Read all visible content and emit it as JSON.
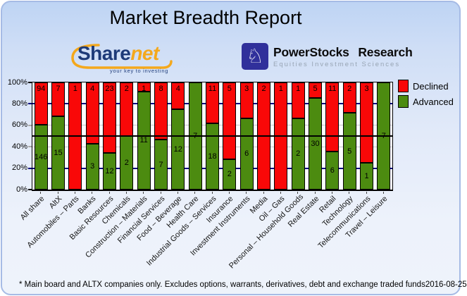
{
  "header": {
    "title": "Market Breadth Report"
  },
  "logos": {
    "sharenet": {
      "part1": "Share",
      "part2": "net",
      "tagline": "your key to investing",
      "navy": "#1d3a78",
      "orange": "#f4a81c"
    },
    "powerstocks": {
      "name": "PowerStocks Research",
      "tagline": "Equities Investment Sciences",
      "icon": "knight-chess-icon",
      "glyph": "♘",
      "box_color": "#30309b"
    }
  },
  "chart_data": {
    "type": "bar",
    "stacked": true,
    "normalized_to_100_percent": true,
    "title": "Market Breadth Report",
    "xlabel": "",
    "ylabel": "",
    "ylim": [
      0,
      100
    ],
    "yticks": [
      "100%",
      "80%",
      "60%",
      "40%",
      "20%",
      "0%"
    ],
    "legend_position": "upper right outside plot",
    "categories": [
      "All share",
      "AltX",
      "Automobiles – Parts",
      "Banks",
      "Basic Resources",
      "Chemicals",
      "Construction – Materials",
      "Financial Services",
      "Food – Beverage",
      "Health Care",
      "Industrial Goods – Services",
      "Insurance",
      "Investment Instruments",
      "Media",
      "Oil – Gas",
      "Personal – Household Goods",
      "Real Estate",
      "Retail",
      "Technology",
      "Telecommunications",
      "Travel – Leisure"
    ],
    "series": [
      {
        "name": "Declined",
        "color": "#f90808",
        "values": [
          94,
          7,
          1,
          4,
          23,
          2,
          1,
          8,
          4,
          0,
          11,
          5,
          3,
          2,
          1,
          1,
          5,
          11,
          2,
          3,
          0
        ]
      },
      {
        "name": "Advanced",
        "color": "#4c8b10",
        "values": [
          146,
          15,
          0,
          3,
          12,
          2,
          11,
          7,
          12,
          7,
          18,
          2,
          6,
          0,
          0,
          2,
          30,
          6,
          5,
          1,
          7
        ]
      }
    ],
    "gridlines": {
      "line_50pct": "#000000",
      "lines_20_80pct": "#00007f",
      "lines_40_60pct": "#c6c6c6"
    }
  },
  "footer": {
    "note": "* Main board and ALTX companies only. Excludes options, warrants, derivatives, debt and exchange traded funds",
    "date": "2016-08-25"
  }
}
